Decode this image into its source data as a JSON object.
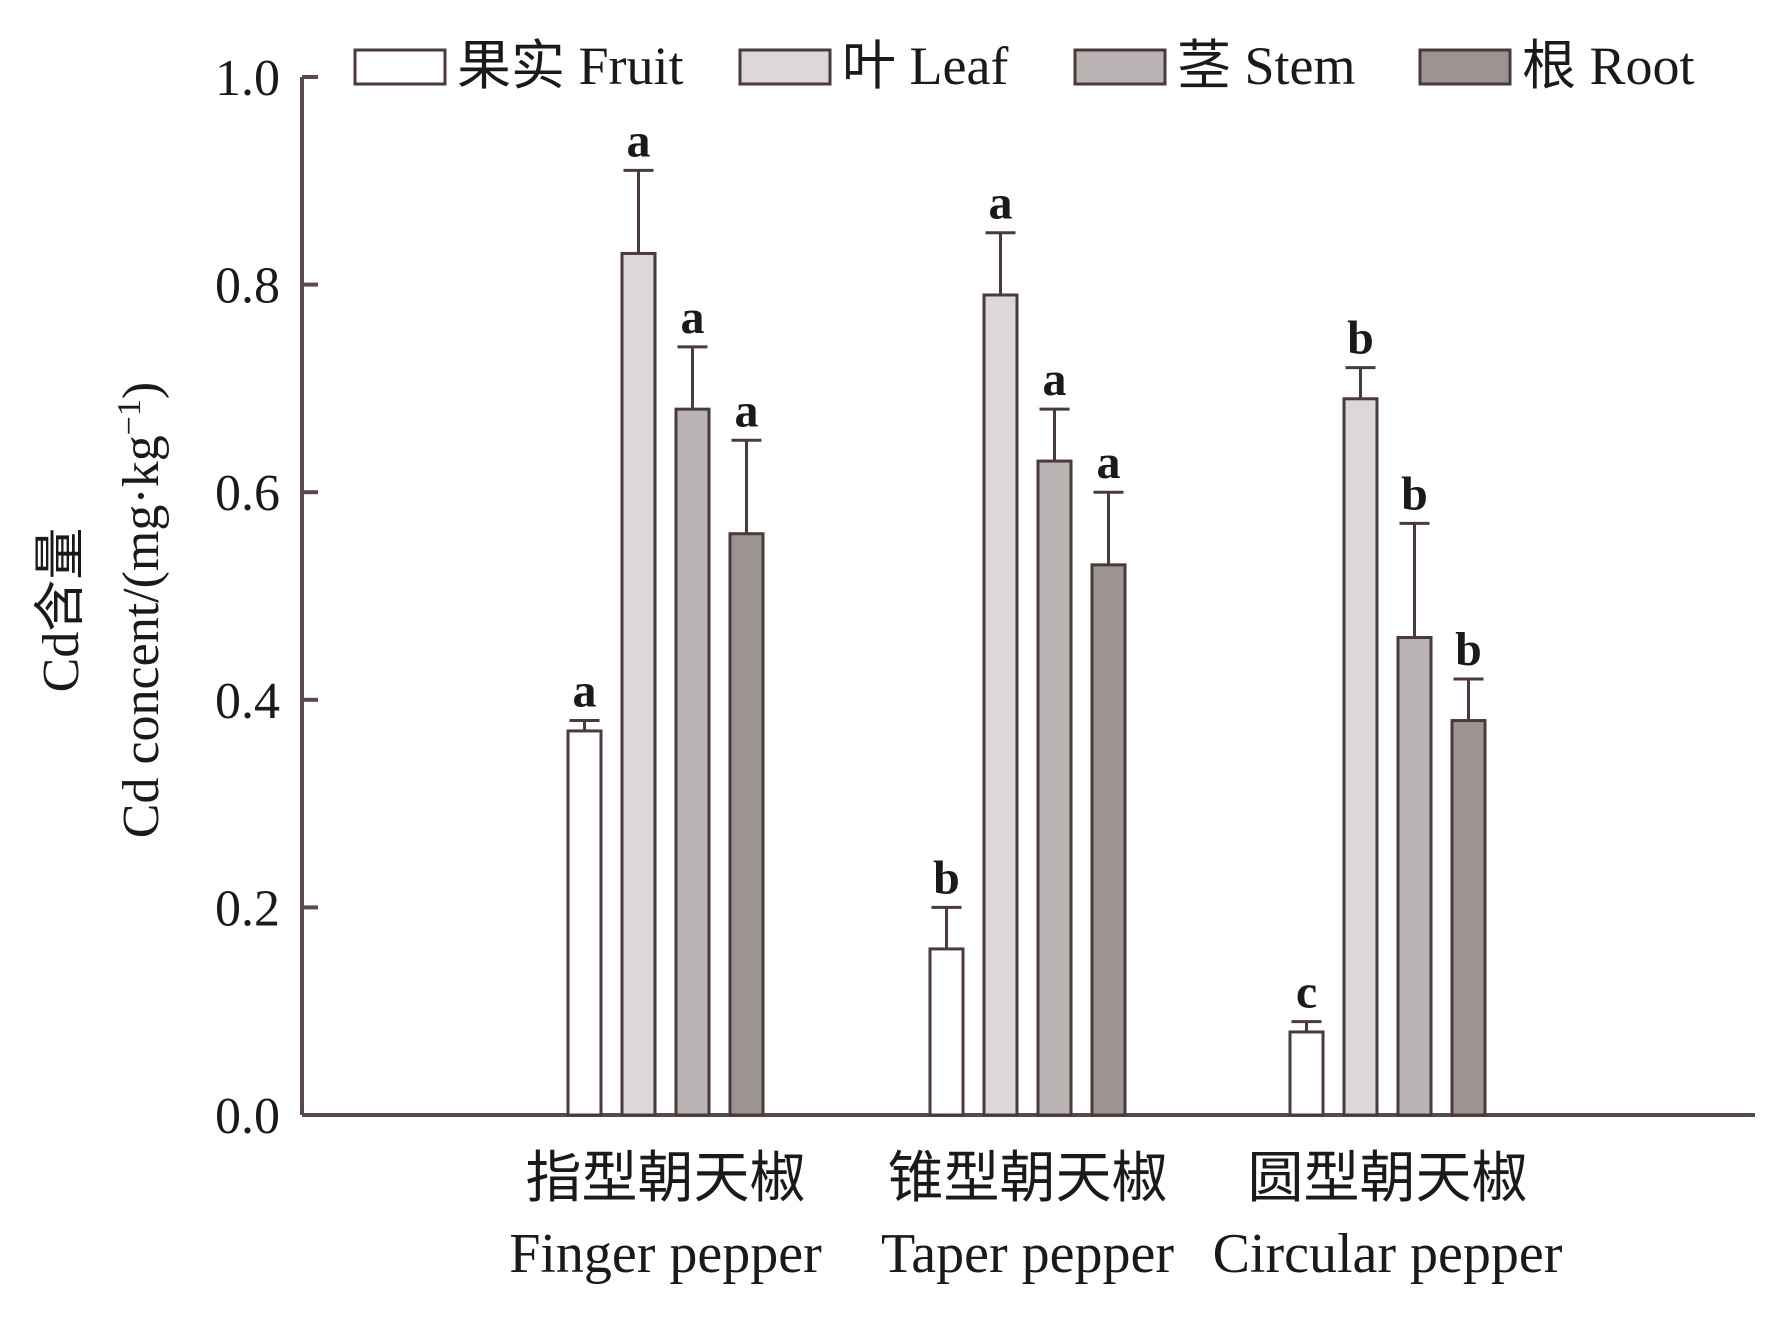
{
  "chart_data": {
    "type": "bar",
    "ylabel_lines": [
      "Cd含量",
      "Cd concent/(mg·kg",
      "−1",
      ")"
    ],
    "ylim": [
      0,
      1.0
    ],
    "yticks": [
      0.0,
      0.2,
      0.4,
      0.6,
      0.8,
      1.0
    ],
    "ytick_labels": [
      "0.0",
      "0.2",
      "0.4",
      "0.6",
      "0.8",
      "1.0"
    ],
    "categories": [
      {
        "zh": "指型朝天椒",
        "en": "Finger pepper"
      },
      {
        "zh": "锥型朝天椒",
        "en": "Taper pepper"
      },
      {
        "zh": "圆型朝天椒",
        "en": "Circular pepper"
      }
    ],
    "series": [
      {
        "name": "果实 Fruit",
        "color": "#ffffff",
        "values": [
          0.37,
          0.16,
          0.08
        ],
        "errors": [
          0.01,
          0.04,
          0.01
        ],
        "letters": [
          "a",
          "b",
          "c"
        ]
      },
      {
        "name": "叶 Leaf",
        "color": "#dcd7d8",
        "values": [
          0.83,
          0.79,
          0.69
        ],
        "errors": [
          0.08,
          0.06,
          0.03
        ],
        "letters": [
          "a",
          "a",
          "b"
        ]
      },
      {
        "name": "茎 Stem",
        "color": "#bab3b4",
        "values": [
          0.68,
          0.63,
          0.46
        ],
        "errors": [
          0.06,
          0.05,
          0.11
        ],
        "letters": [
          "a",
          "a",
          "b"
        ]
      },
      {
        "name": "根 Root",
        "color": "#9c9393",
        "values": [
          0.56,
          0.53,
          0.38
        ],
        "errors": [
          0.09,
          0.07,
          0.04
        ],
        "letters": [
          "a",
          "a",
          "b"
        ]
      }
    ],
    "legend": "top",
    "grid": false,
    "colors": {
      "axis": "#5a4a4a",
      "bar_stroke": "#4a3a3a"
    }
  }
}
